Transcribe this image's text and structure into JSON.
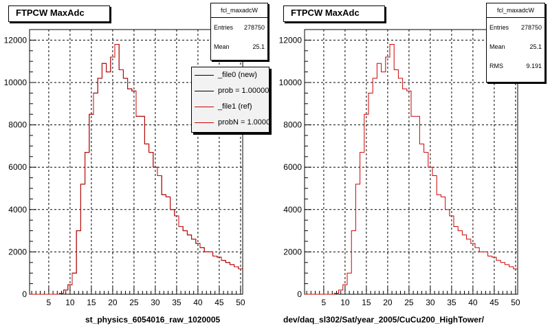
{
  "colors": {
    "new": "#000000",
    "ref": "#cc0000",
    "grid": "#000000",
    "background": "#ffffff"
  },
  "chart_data": [
    {
      "type": "line",
      "title": "FTPCW MaxAdc",
      "xlabel": "st_physics_6054016_raw_1020005",
      "ylabel": "",
      "xlim": [
        0.5,
        50.5
      ],
      "ylim": [
        0,
        12500
      ],
      "xticks": [
        5,
        10,
        15,
        20,
        25,
        30,
        35,
        40,
        45,
        50
      ],
      "yticks": [
        0,
        2000,
        4000,
        6000,
        8000,
        10000,
        12000
      ],
      "grid": true,
      "stats": {
        "name": "fcl_maxadcW",
        "entries_label": "Entries",
        "entries": "278750",
        "mean_label": "Mean",
        "mean": "25.1"
      },
      "legend": {
        "position": "top-right",
        "entries": [
          {
            "label": "_file0 (new)",
            "color": "#000000"
          },
          {
            "label": "prob = 1.000000",
            "color": "#000000"
          },
          {
            "label": "_file1 (ref)",
            "color": "#cc0000"
          },
          {
            "label": "probN = 1.000000",
            "color": "#cc0000"
          }
        ]
      },
      "series": [
        {
          "name": "_file0 (new)",
          "color": "#000000",
          "style": "histogram",
          "bin_start": 0.5,
          "bin_width": 1,
          "values": [
            0,
            0,
            0,
            0,
            0,
            0,
            0,
            50,
            200,
            450,
            1000,
            3000,
            5200,
            6700,
            8500,
            9500,
            10200,
            10900,
            10500,
            11200,
            11800,
            10600,
            10200,
            9700,
            9600,
            8400,
            8400,
            7100,
            6700,
            6000,
            5600,
            4700,
            4600,
            4000,
            3700,
            3200,
            3000,
            2800,
            2600,
            2400,
            2200,
            2000,
            2000,
            1800,
            1750,
            1600,
            1500,
            1400,
            1300,
            1200
          ]
        },
        {
          "name": "_file1 (ref)",
          "color": "#cc0000",
          "style": "histogram",
          "bin_start": 0.5,
          "bin_width": 1,
          "values": [
            0,
            0,
            0,
            0,
            0,
            0,
            0,
            50,
            200,
            450,
            1000,
            3000,
            5200,
            6700,
            8500,
            9500,
            10200,
            10900,
            10500,
            11200,
            11800,
            10600,
            10200,
            9700,
            9600,
            8400,
            8400,
            7100,
            6700,
            6000,
            5600,
            4700,
            4600,
            4000,
            3700,
            3200,
            3000,
            2800,
            2600,
            2400,
            2200,
            2000,
            2000,
            1800,
            1750,
            1600,
            1500,
            1400,
            1300,
            1200
          ]
        }
      ]
    },
    {
      "type": "line",
      "title": "FTPCW MaxAdc",
      "xlabel": "dev/daq_sl302/Sat/year_2005/CuCu200_HighTower/",
      "ylabel": "",
      "xlim": [
        0.5,
        50.5
      ],
      "ylim": [
        0,
        12500
      ],
      "xticks": [
        5,
        10,
        15,
        20,
        25,
        30,
        35,
        40,
        45,
        50
      ],
      "yticks": [
        0,
        2000,
        4000,
        6000,
        8000,
        10000,
        12000
      ],
      "grid": true,
      "stats": {
        "name": "fcl_maxadcW",
        "entries_label": "Entries",
        "entries": "278750",
        "mean_label": "Mean",
        "mean": "25.1",
        "rms_label": "RMS",
        "rms": "9.191"
      },
      "series": [
        {
          "color": "#cc0000",
          "style": "histogram",
          "bin_start": 0.5,
          "bin_width": 1,
          "values": [
            0,
            0,
            0,
            0,
            0,
            0,
            0,
            50,
            200,
            450,
            1000,
            3000,
            5200,
            6700,
            8500,
            9500,
            10200,
            10900,
            10500,
            11200,
            11800,
            10600,
            10200,
            9700,
            9600,
            8400,
            8400,
            7100,
            6700,
            6000,
            5600,
            4700,
            4600,
            4000,
            3700,
            3200,
            3000,
            2800,
            2600,
            2400,
            2200,
            2000,
            2000,
            1800,
            1750,
            1600,
            1500,
            1400,
            1300,
            1200
          ]
        }
      ]
    }
  ]
}
